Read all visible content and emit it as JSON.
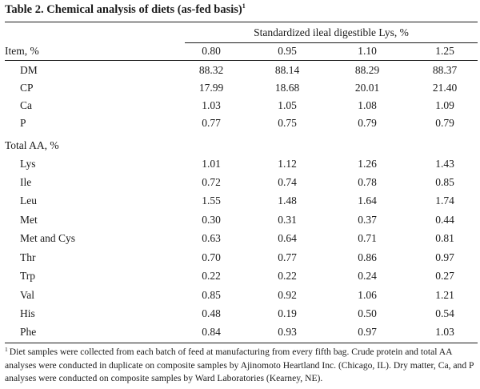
{
  "table": {
    "title": "Table 2. Chemical analysis of diets (as-fed basis)",
    "title_note_mark": "1",
    "spanner": "Standardized ileal digestible Lys, %",
    "stub_header": "Item, %",
    "columns": [
      "0.80",
      "0.95",
      "1.10",
      "1.25"
    ],
    "rows": [
      {
        "label": "DM",
        "values": [
          "88.32",
          "88.14",
          "88.29",
          "88.37"
        ]
      },
      {
        "label": "CP",
        "values": [
          "17.99",
          "18.68",
          "20.01",
          "21.40"
        ]
      },
      {
        "label": "Ca",
        "values": [
          "1.03",
          "1.05",
          "1.08",
          "1.09"
        ]
      },
      {
        "label": "P",
        "values": [
          "0.77",
          "0.75",
          "0.79",
          "0.79"
        ]
      },
      {
        "label": "Total AA, %",
        "values": [
          "",
          "",
          "",
          ""
        ]
      },
      {
        "label": "Lys",
        "values": [
          "1.01",
          "1.12",
          "1.26",
          "1.43"
        ]
      },
      {
        "label": "Ile",
        "values": [
          "0.72",
          "0.74",
          "0.78",
          "0.85"
        ]
      },
      {
        "label": "Leu",
        "values": [
          "1.55",
          "1.48",
          "1.64",
          "1.74"
        ]
      },
      {
        "label": "Met",
        "values": [
          "0.30",
          "0.31",
          "0.37",
          "0.44"
        ]
      },
      {
        "label": "Met and Cys",
        "values": [
          "0.63",
          "0.64",
          "0.71",
          "0.81"
        ]
      },
      {
        "label": "Thr",
        "values": [
          "0.70",
          "0.77",
          "0.86",
          "0.97"
        ]
      },
      {
        "label": "Trp",
        "values": [
          "0.22",
          "0.22",
          "0.24",
          "0.27"
        ]
      },
      {
        "label": "Val",
        "values": [
          "0.85",
          "0.92",
          "1.06",
          "1.21"
        ]
      },
      {
        "label": "His",
        "values": [
          "0.48",
          "0.19",
          "0.50",
          "0.54"
        ]
      },
      {
        "label": "Phe",
        "values": [
          "0.84",
          "0.93",
          "0.97",
          "1.03"
        ]
      }
    ],
    "footnote_mark": "1",
    "footnote": "Diet samples were collected from each batch of feed at manufacturing from every fifth bag. Crude protein and total AA analyses were conducted in duplicate on composite samples by Ajinomoto Heartland Inc. (Chicago, IL). Dry matter, Ca, and P analyses were conducted on composite samples by Ward Laboratories (Kearney, NE)."
  }
}
